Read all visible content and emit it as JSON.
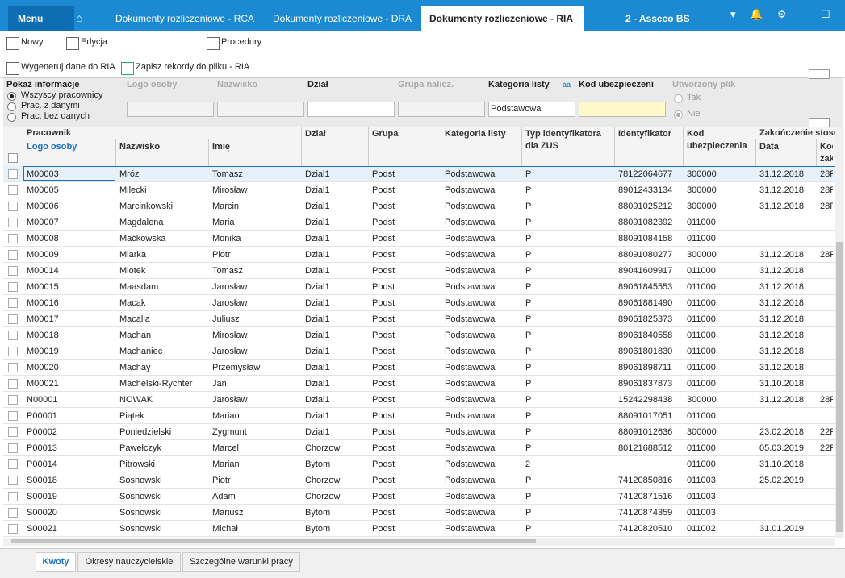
{
  "titlebar": {
    "menu": "Menu",
    "tabs": [
      "Dokumenty rozliczeniowe - RCA",
      "Dokumenty rozliczeniowe - DRA",
      "Dokumenty rozliczeniowe - RIA"
    ],
    "company": "2 - Asseco BS"
  },
  "toolbar": {
    "buttons": [
      "Nowy",
      "Edycja",
      "Procedury"
    ],
    "actions": [
      "Wygeneruj dane do RIA",
      "Zapisz rekordy do pliku - RIA"
    ]
  },
  "filters": {
    "show_info": {
      "label": "Pokaż informacje",
      "options": [
        "Wszyscy pracownicy",
        "Prac. z danymi",
        "Prac. bez danych"
      ]
    },
    "columns": [
      "Logo osoby",
      "Nazwisko",
      "Dział",
      "Grupa nalicz.",
      "Kategoria listy",
      "Kod ubezpieczeni"
    ],
    "category_value": "Podstawowa",
    "category_hint": "aa",
    "created_file": {
      "label": "Utworzony plik",
      "options": [
        "Tak",
        "Nie"
      ]
    }
  },
  "table": {
    "groups": [
      "Pracownik",
      "Zakończenie stosu"
    ],
    "headers": [
      "Logo osoby",
      "Nazwisko",
      "Imię",
      "Dział",
      "Grupa",
      "Kategoria listy",
      "Typ identyfikatora dla ZUS",
      "Identyfikator",
      "Kod ubezpieczenia",
      "Data",
      "Kod zak"
    ],
    "rows": [
      [
        "M00003",
        "Mróz",
        "Tomasz",
        "Dzial1",
        "Podst",
        "Podstawowa",
        "P",
        "78122064677",
        "300000",
        "31.12.2018",
        "28F"
      ],
      [
        "M00005",
        "Milecki",
        "Mirosław",
        "Dzial1",
        "Podst",
        "Podstawowa",
        "P",
        "89012433134",
        "300000",
        "31.12.2018",
        "28F"
      ],
      [
        "M00006",
        "Marcinkowski",
        "Marcin",
        "Dzial1",
        "Podst",
        "Podstawowa",
        "P",
        "88091025212",
        "300000",
        "31.12.2018",
        "28F"
      ],
      [
        "M00007",
        "Magdalena",
        "Maria",
        "Dzial1",
        "Podst",
        "Podstawowa",
        "P",
        "88091082392",
        "011000",
        null,
        null
      ],
      [
        "M00008",
        "Maćkowska",
        "Monika",
        "Dzial1",
        "Podst",
        "Podstawowa",
        "P",
        "88091084158",
        "011000",
        null,
        null
      ],
      [
        "M00009",
        "Miarka",
        "Piotr",
        "Dzial1",
        "Podst",
        "Podstawowa",
        "P",
        "88091080277",
        "300000",
        "31.12.2018",
        "28F"
      ],
      [
        "M00014",
        "Mlotek",
        "Tomasz",
        "Dzial1",
        "Podst",
        "Podstawowa",
        "P",
        "89041609917",
        "011000",
        "31.12.2018",
        null
      ],
      [
        "M00015",
        "Maasdam",
        "Jarosław",
        "Dzial1",
        "Podst",
        "Podstawowa",
        "P",
        "89061845553",
        "011000",
        "31.12.2018",
        null
      ],
      [
        "M00016",
        "Macak",
        "Jarosław",
        "Dzial1",
        "Podst",
        "Podstawowa",
        "P",
        "89061881490",
        "011000",
        "31.12.2018",
        null
      ],
      [
        "M00017",
        "Macalla",
        "Juliusz",
        "Dzial1",
        "Podst",
        "Podstawowa",
        "P",
        "89061825373",
        "011000",
        "31.12.2018",
        null
      ],
      [
        "M00018",
        "Machan",
        "Mirosław",
        "Dzial1",
        "Podst",
        "Podstawowa",
        "P",
        "89061840558",
        "011000",
        "31.12.2018",
        null
      ],
      [
        "M00019",
        "Machaniec",
        "Jarosław",
        "Dzial1",
        "Podst",
        "Podstawowa",
        "P",
        "89061801830",
        "011000",
        "31.12.2018",
        null
      ],
      [
        "M00020",
        "Machay",
        "Przemysław",
        "Dzial1",
        "Podst",
        "Podstawowa",
        "P",
        "89061898711",
        "011000",
        "31.12.2018",
        null
      ],
      [
        "M00021",
        "Machelski-Rychter",
        "Jan",
        "Dzial1",
        "Podst",
        "Podstawowa",
        "P",
        "89061837873",
        "011000",
        "31.10.2018",
        null
      ],
      [
        "N00001",
        "NOWAK",
        "Jarosław",
        "Dzial1",
        "Podst",
        "Podstawowa",
        "P",
        "15242298438",
        "300000",
        "31.12.2018",
        "28F"
      ],
      [
        "P00001",
        "Piątek",
        "Marian",
        "Dzial1",
        "Podst",
        "Podstawowa",
        "P",
        "88091017051",
        "011000",
        null,
        null
      ],
      [
        "P00002",
        "Poniedzielski",
        "Zygmunt",
        "Dzial1",
        "Podst",
        "Podstawowa",
        "P",
        "88091012636",
        "300000",
        "23.02.2018",
        "22F"
      ],
      [
        "P00013",
        "Pawełczyk",
        "Marcel",
        "Chorzow",
        "Podst",
        "Podstawowa",
        "P",
        "80121688512",
        "011000",
        "05.03.2019",
        "22F"
      ],
      [
        "P00014",
        "Pitrowski",
        "Marian",
        "Bytom",
        "Podst",
        "Podstawowa",
        "2",
        null,
        "011000",
        "31.10.2018",
        null
      ],
      [
        "S00018",
        "Sosnowski",
        "Piotr",
        "Chorzow",
        "Podst",
        "Podstawowa",
        "P",
        "74120850816",
        "011003",
        "25.02.2019",
        null
      ],
      [
        "S00019",
        "Sosnowski",
        "Adam",
        "Chorzow",
        "Podst",
        "Podstawowa",
        "P",
        "74120871516",
        "011003",
        null,
        null
      ],
      [
        "S00020",
        "Sosnowski",
        "Mariusz",
        "Bytom",
        "Podst",
        "Podstawowa",
        "P",
        "74120874359",
        "011003",
        null,
        null
      ],
      [
        "S00021",
        "Sosnowski",
        "Michał",
        "Bytom",
        "Podst",
        "Podstawowa",
        "P",
        "74120820510",
        "011002",
        "31.01.2019",
        null
      ]
    ]
  },
  "bottom_tabs": [
    "Kwoty",
    "Okresy nauczycielskie",
    "Szczególne warunki pracy"
  ]
}
